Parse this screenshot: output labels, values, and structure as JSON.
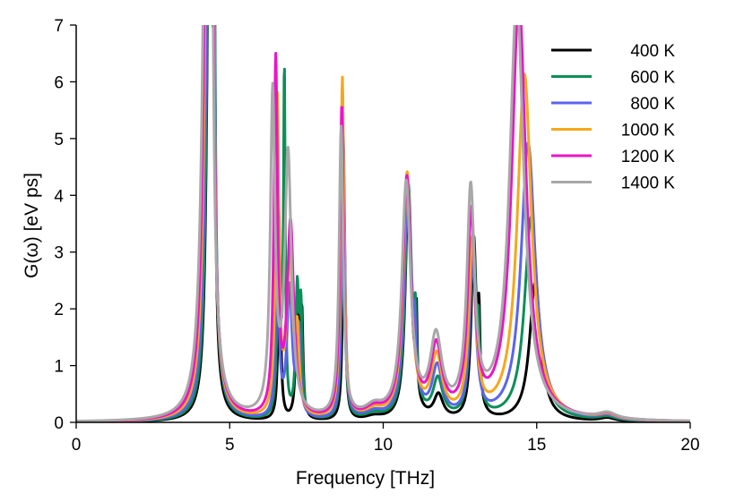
{
  "chart_data": {
    "type": "line",
    "title": "",
    "xlabel": "Frequency [THz]",
    "ylabel": "G(ω) [eV ps]",
    "xlim": [
      0,
      20
    ],
    "ylim": [
      0,
      7
    ],
    "xticks": [
      0,
      5,
      10,
      15,
      20
    ],
    "yticks": [
      0,
      1,
      2,
      3,
      4,
      5,
      6,
      7
    ],
    "grid": false,
    "legend_position": "top-right",
    "series": [
      {
        "name": "400 K",
        "color": "#000000",
        "peaks": [
          [
            4.35,
            0.09,
            12
          ],
          [
            4.5,
            0.035,
            5
          ],
          [
            6.62,
            0.05,
            3.0
          ],
          [
            7.2,
            0.055,
            2.2
          ],
          [
            7.35,
            0.045,
            1.8
          ],
          [
            8.72,
            0.05,
            3.9
          ],
          [
            9.7,
            0.35,
            0.07
          ],
          [
            10.82,
            0.12,
            4.05
          ],
          [
            11.08,
            0.03,
            1.5
          ],
          [
            11.8,
            0.18,
            0.42
          ],
          [
            12.95,
            0.1,
            3.15
          ],
          [
            13.12,
            0.04,
            1.4
          ],
          [
            14.95,
            0.22,
            2.45
          ],
          [
            17.3,
            0.3,
            0.06
          ]
        ]
      },
      {
        "name": "600 K",
        "color": "#0b8f57",
        "peaks": [
          [
            4.35,
            0.1,
            12
          ],
          [
            4.5,
            0.04,
            5
          ],
          [
            6.6,
            0.055,
            3.5
          ],
          [
            6.78,
            0.035,
            6.0
          ],
          [
            7.2,
            0.06,
            2.2
          ],
          [
            7.32,
            0.05,
            1.8
          ],
          [
            8.7,
            0.055,
            4.6
          ],
          [
            9.7,
            0.35,
            0.1
          ],
          [
            10.82,
            0.13,
            4.1
          ],
          [
            11.05,
            0.04,
            1.2
          ],
          [
            11.78,
            0.19,
            0.68
          ],
          [
            12.93,
            0.11,
            3.15
          ],
          [
            13.1,
            0.045,
            1.0
          ],
          [
            14.82,
            0.26,
            3.6
          ],
          [
            17.3,
            0.35,
            0.07
          ]
        ]
      },
      {
        "name": "800 K",
        "color": "#5b64f0",
        "peaks": [
          [
            4.33,
            0.11,
            12
          ],
          [
            4.48,
            0.045,
            5
          ],
          [
            6.55,
            0.06,
            3.2
          ],
          [
            6.95,
            0.1,
            2.3
          ],
          [
            7.25,
            0.06,
            1.5
          ],
          [
            8.7,
            0.06,
            5.0
          ],
          [
            9.7,
            0.35,
            0.12
          ],
          [
            10.8,
            0.14,
            4.1
          ],
          [
            11.02,
            0.05,
            0.8
          ],
          [
            11.76,
            0.2,
            0.88
          ],
          [
            12.92,
            0.12,
            2.75
          ],
          [
            14.72,
            0.28,
            4.9
          ],
          [
            17.3,
            0.35,
            0.08
          ]
        ]
      },
      {
        "name": "1000 K",
        "color": "#f5a81a",
        "peaks": [
          [
            4.3,
            0.12,
            12
          ],
          [
            4.46,
            0.05,
            5
          ],
          [
            6.55,
            0.065,
            5.6
          ],
          [
            6.95,
            0.11,
            2.8
          ],
          [
            7.2,
            0.07,
            1.3
          ],
          [
            8.67,
            0.065,
            6.0
          ],
          [
            9.7,
            0.35,
            0.14
          ],
          [
            10.78,
            0.15,
            4.3
          ],
          [
            11.74,
            0.21,
            1.05
          ],
          [
            12.9,
            0.13,
            3.05
          ],
          [
            14.6,
            0.28,
            6.1
          ],
          [
            17.3,
            0.35,
            0.09
          ]
        ]
      },
      {
        "name": "1200 K",
        "color": "#ec14c8",
        "peaks": [
          [
            4.28,
            0.13,
            12
          ],
          [
            4.44,
            0.055,
            5
          ],
          [
            6.5,
            0.07,
            6.2
          ],
          [
            6.98,
            0.13,
            3.4
          ],
          [
            8.65,
            0.07,
            5.5
          ],
          [
            9.7,
            0.35,
            0.16
          ],
          [
            10.77,
            0.16,
            4.2
          ],
          [
            11.73,
            0.22,
            1.2
          ],
          [
            12.87,
            0.14,
            3.5
          ],
          [
            14.42,
            0.28,
            7.4
          ],
          [
            17.3,
            0.35,
            0.1
          ]
        ]
      },
      {
        "name": "1400 K",
        "color": "#a8a8a8",
        "peaks": [
          [
            4.25,
            0.14,
            12
          ],
          [
            4.42,
            0.06,
            5
          ],
          [
            6.4,
            0.09,
            5.6
          ],
          [
            6.9,
            0.13,
            4.6
          ],
          [
            8.63,
            0.08,
            5.1
          ],
          [
            9.7,
            0.35,
            0.18
          ],
          [
            10.75,
            0.17,
            4.1
          ],
          [
            11.72,
            0.23,
            1.35
          ],
          [
            12.85,
            0.15,
            3.9
          ],
          [
            14.35,
            0.28,
            7.4
          ],
          [
            17.3,
            0.35,
            0.11
          ]
        ]
      }
    ]
  }
}
